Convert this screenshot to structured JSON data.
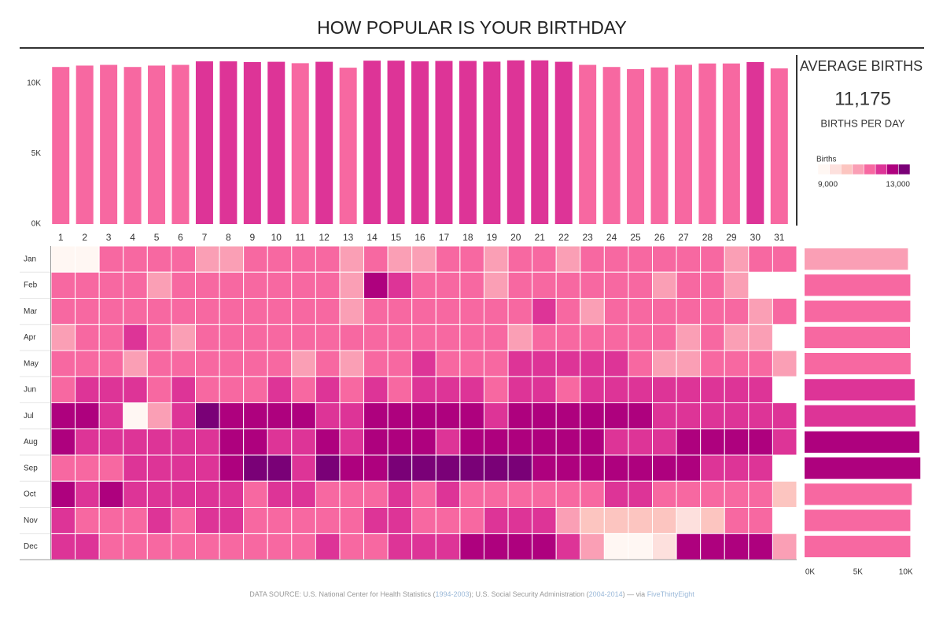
{
  "title": "HOW POPULAR IS YOUR BIRTHDAY",
  "kpi": {
    "title": "AVERAGE BIRTHS",
    "value": "11,175",
    "subtitle": "BIRTHS PER DAY"
  },
  "legend": {
    "title": "Births",
    "colors": [
      "#fff7f3",
      "#fde0dd",
      "#fcc5c0",
      "#fa9fb5",
      "#f768a1",
      "#dd3497",
      "#ae017e",
      "#7a0177"
    ],
    "min": {
      "value": 9000,
      "label": "9,000"
    },
    "max": {
      "value": 13000,
      "label": "13,000"
    }
  },
  "chart_data": [
    {
      "type": "bar",
      "categories": [
        "1",
        "2",
        "3",
        "4",
        "5",
        "6",
        "7",
        "8",
        "9",
        "10",
        "11",
        "12",
        "13",
        "14",
        "15",
        "16",
        "17",
        "18",
        "19",
        "20",
        "21",
        "22",
        "23",
        "24",
        "25",
        "26",
        "27",
        "28",
        "29",
        "30",
        "31"
      ],
      "values": [
        11150,
        11250,
        11300,
        11150,
        11250,
        11300,
        11550,
        11550,
        11500,
        11520,
        11420,
        11520,
        11100,
        11600,
        11600,
        11550,
        11580,
        11580,
        11530,
        11620,
        11620,
        11520,
        11300,
        11150,
        11000,
        11120,
        11300,
        11400,
        11400,
        11500,
        11050
      ],
      "ylim": [
        0,
        12000
      ],
      "yticks": [
        {
          "value": 0,
          "label": "0K"
        },
        {
          "value": 5000,
          "label": "5K"
        },
        {
          "value": 10000,
          "label": "10K"
        }
      ]
    },
    {
      "type": "heatmap",
      "rows": [
        "Jan",
        "Feb",
        "Mar",
        "Apr",
        "May",
        "Jun",
        "Jul",
        "Aug",
        "Sep",
        "Oct",
        "Nov",
        "Dec"
      ],
      "values": [
        [
          9200,
          9200,
          11200,
          11200,
          11200,
          11200,
          10700,
          10700,
          11200,
          11200,
          11200,
          11200,
          10700,
          11200,
          10700,
          10700,
          11200,
          11200,
          10700,
          11200,
          11200,
          10700,
          11200,
          11200,
          11200,
          11200,
          11200,
          11200,
          10700,
          11200,
          11200
        ],
        [
          11200,
          11200,
          11200,
          11200,
          10700,
          11200,
          11200,
          11200,
          11200,
          11200,
          11200,
          11200,
          10700,
          12200,
          11700,
          11200,
          11200,
          11200,
          10700,
          11200,
          11200,
          11200,
          11200,
          11200,
          11200,
          10700,
          11200,
          11200,
          10700,
          null,
          null
        ],
        [
          11200,
          11200,
          11200,
          11200,
          11200,
          11200,
          11200,
          11200,
          11200,
          11200,
          11200,
          11200,
          10700,
          11200,
          11200,
          11200,
          11200,
          11200,
          11200,
          11200,
          11700,
          11200,
          10700,
          11200,
          11200,
          11200,
          11200,
          11200,
          11200,
          10700,
          11200
        ],
        [
          10700,
          11200,
          11200,
          11700,
          11200,
          10700,
          11200,
          11200,
          11200,
          11200,
          11200,
          11200,
          11200,
          11200,
          11200,
          11200,
          11200,
          11200,
          11200,
          10700,
          11200,
          11200,
          11200,
          11200,
          11200,
          11200,
          10700,
          11200,
          10700,
          10700,
          null
        ],
        [
          11200,
          11200,
          11200,
          10700,
          11200,
          11200,
          11200,
          11200,
          11200,
          11200,
          10700,
          11200,
          10700,
          11200,
          11200,
          11700,
          11200,
          11200,
          11200,
          11700,
          11700,
          11700,
          11700,
          11700,
          11200,
          10700,
          10700,
          11200,
          11200,
          11200,
          10700
        ],
        [
          11200,
          11700,
          11700,
          11700,
          11200,
          11700,
          11200,
          11200,
          11200,
          11700,
          11200,
          11700,
          11200,
          11700,
          11200,
          11700,
          11700,
          11700,
          11200,
          11700,
          11700,
          11200,
          11700,
          11700,
          11700,
          11700,
          11700,
          11700,
          11700,
          11700,
          null
        ],
        [
          12200,
          12200,
          11700,
          9200,
          10700,
          11700,
          12700,
          12200,
          12200,
          12200,
          12200,
          11700,
          11700,
          12200,
          12200,
          12200,
          12200,
          12200,
          11700,
          12200,
          12200,
          12200,
          12200,
          12200,
          12200,
          11700,
          11700,
          11700,
          11700,
          11700,
          11700
        ],
        [
          12200,
          11700,
          11700,
          11700,
          11700,
          11700,
          11700,
          12200,
          12200,
          11700,
          11700,
          12200,
          11700,
          12200,
          12200,
          12200,
          11700,
          12200,
          12200,
          12200,
          12200,
          12200,
          12200,
          11700,
          11700,
          11700,
          12200,
          12200,
          12200,
          12200,
          11700
        ],
        [
          11200,
          11200,
          11200,
          11700,
          11700,
          11700,
          11700,
          12200,
          12700,
          12700,
          11700,
          12700,
          12200,
          12200,
          12700,
          12700,
          12700,
          12700,
          12700,
          12700,
          12200,
          12200,
          12200,
          12200,
          12200,
          12200,
          12200,
          11700,
          11700,
          11700,
          null
        ],
        [
          12200,
          11700,
          12200,
          11700,
          11700,
          11700,
          11700,
          11700,
          11200,
          11700,
          11700,
          11200,
          11200,
          11200,
          11700,
          11200,
          11700,
          11200,
          11200,
          11200,
          11200,
          11200,
          11200,
          11700,
          11700,
          11200,
          11200,
          11200,
          11200,
          11200,
          10200
        ],
        [
          11700,
          11200,
          11200,
          11200,
          11700,
          11200,
          11700,
          11700,
          11200,
          11200,
          11200,
          11200,
          11200,
          11700,
          11700,
          11200,
          11200,
          11200,
          11700,
          11700,
          11700,
          10700,
          10200,
          10200,
          10200,
          10200,
          9700,
          10200,
          11200,
          11200,
          null
        ],
        [
          11700,
          11700,
          11200,
          11200,
          11200,
          11200,
          11200,
          11200,
          11200,
          11200,
          11200,
          11700,
          11200,
          11200,
          11700,
          11700,
          11700,
          12200,
          12200,
          12200,
          12200,
          11700,
          10700,
          9200,
          9200,
          9700,
          12200,
          12200,
          12200,
          12200,
          10700
        ]
      ]
    },
    {
      "type": "hbar",
      "values": [
        10800,
        11050,
        11050,
        11020,
        11080,
        11500,
        11600,
        12000,
        12100,
        11200,
        11050,
        11050
      ],
      "xlim": [
        0,
        12000
      ],
      "xticks": [
        {
          "value": 0,
          "label": "0K"
        },
        {
          "value": 5000,
          "label": "5K"
        },
        {
          "value": 10000,
          "label": "10K"
        }
      ]
    }
  ],
  "footer": {
    "text1": "DATA SOURCE: U.S. National Center for Health Statistics (",
    "link1": "1994-2003",
    "text2": "); U.S. Social Security Administration (",
    "link2": "2004-2014",
    "text3": ") — via ",
    "link3": "FiveThirtyEight"
  }
}
